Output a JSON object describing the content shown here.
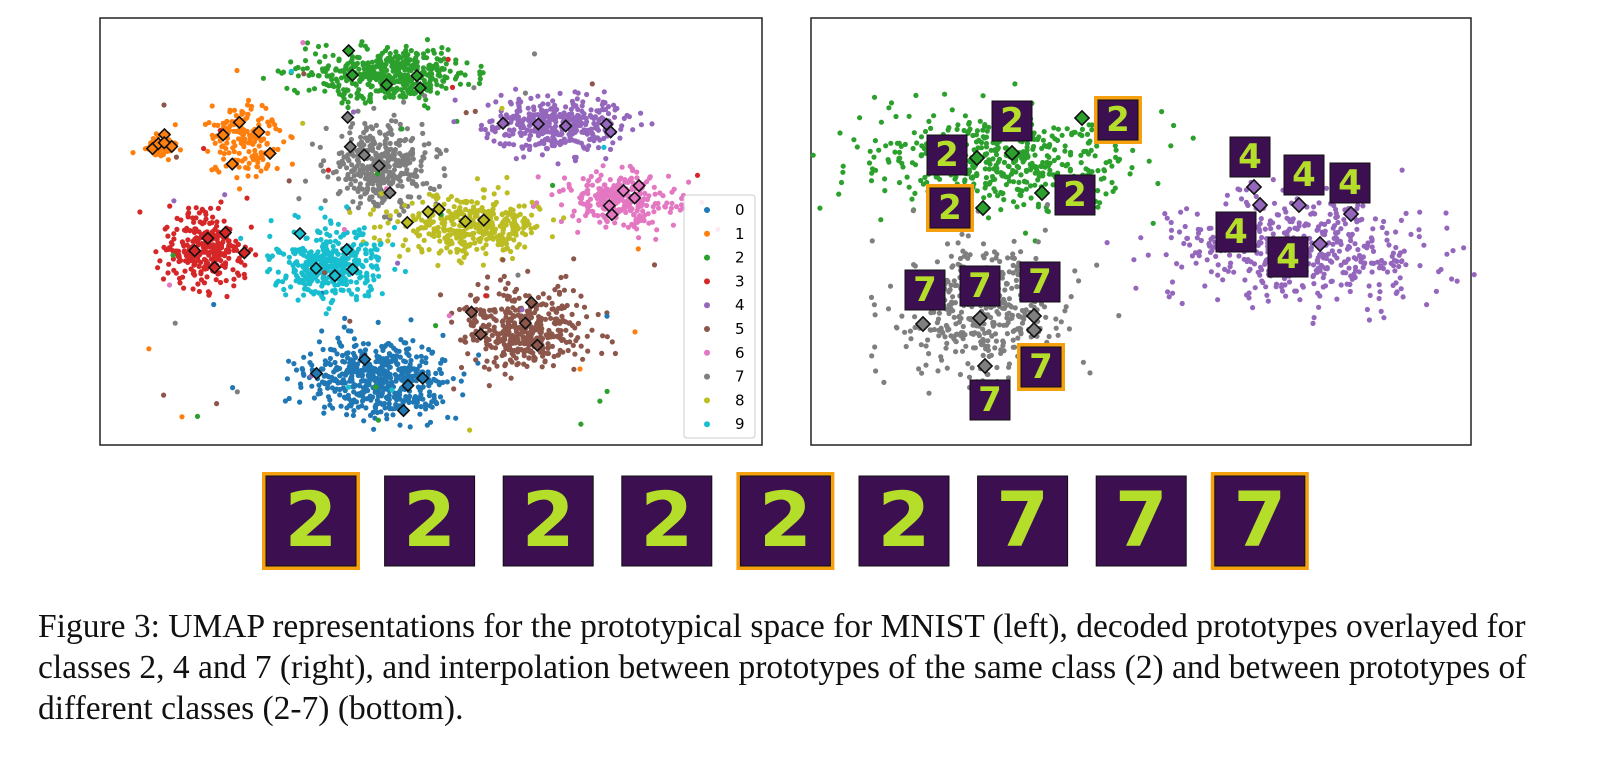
{
  "figure": {
    "legend": [
      {
        "label": "0",
        "color": "#1f77b4"
      },
      {
        "label": "1",
        "color": "#ff7f0e"
      },
      {
        "label": "2",
        "color": "#2ca02c"
      },
      {
        "label": "3",
        "color": "#d62728"
      },
      {
        "label": "4",
        "color": "#9467bd"
      },
      {
        "label": "5",
        "color": "#8c564b"
      },
      {
        "label": "6",
        "color": "#e377c2"
      },
      {
        "label": "7",
        "color": "#7f7f7f"
      },
      {
        "label": "8",
        "color": "#bcbd22"
      },
      {
        "label": "9",
        "color": "#17becf"
      }
    ],
    "overlays": [
      {
        "digit": "2",
        "highlight": false
      },
      {
        "digit": "2",
        "highlight": false
      },
      {
        "digit": "2",
        "highlight": false
      },
      {
        "digit": "2",
        "highlight": true
      },
      {
        "digit": "2",
        "highlight": true
      },
      {
        "digit": "4",
        "highlight": false
      },
      {
        "digit": "4",
        "highlight": false
      },
      {
        "digit": "4",
        "highlight": false
      },
      {
        "digit": "4",
        "highlight": false
      },
      {
        "digit": "4",
        "highlight": false
      },
      {
        "digit": "7",
        "highlight": false
      },
      {
        "digit": "7",
        "highlight": false
      },
      {
        "digit": "7",
        "highlight": false
      },
      {
        "digit": "7",
        "highlight": true
      },
      {
        "digit": "7",
        "highlight": false
      }
    ],
    "strip": [
      {
        "digit": "2",
        "highlight": true
      },
      {
        "digit": "2",
        "highlight": false
      },
      {
        "digit": "2",
        "highlight": false
      },
      {
        "digit": "2",
        "highlight": false
      },
      {
        "digit": "2",
        "highlight": true
      },
      {
        "digit": "2",
        "highlight": false
      },
      {
        "digit": "7",
        "highlight": false
      },
      {
        "digit": "7",
        "highlight": false
      },
      {
        "digit": "7",
        "highlight": true
      }
    ],
    "caption": "Figure 3: UMAP representations for the prototypical space for MNIST (left), decoded prototypes overlayed for classes 2, 4 and 7 (right), and interpolation between prototypes of the same class (2) and between prototypes of different classes (2-7) (bottom)."
  }
}
